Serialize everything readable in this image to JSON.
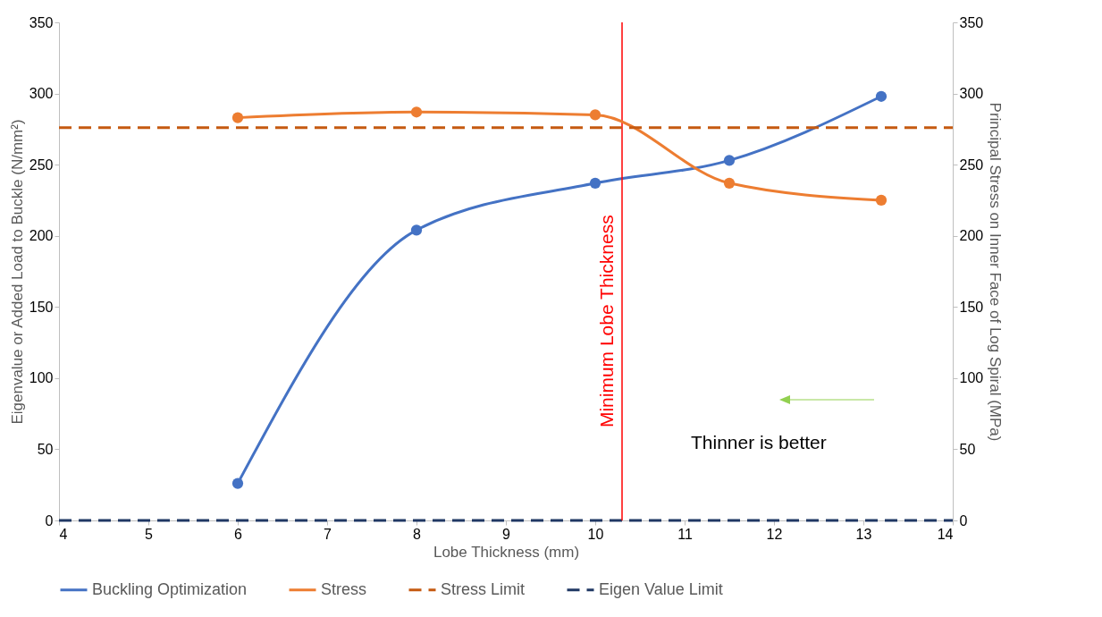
{
  "chart_data": {
    "type": "line",
    "xlabel": "Lobe Thickness (mm)",
    "ylabel": "Eigenvalue or Added Load to Buckle (N/mm²)",
    "y2label": "Principal Stress on Inner Face of Log Spiral (MPa)",
    "xlim": [
      4,
      14
    ],
    "xticks": [
      4,
      5,
      6,
      7,
      8,
      9,
      10,
      11,
      12,
      13,
      14
    ],
    "ylim": [
      0,
      350
    ],
    "yticks": [
      0,
      50,
      100,
      150,
      200,
      250,
      300,
      350
    ],
    "y2lim": [
      0,
      350
    ],
    "y2ticks": [
      0,
      50,
      100,
      150,
      200,
      250,
      300,
      350
    ],
    "grid": false,
    "legend": "bottom",
    "series": [
      {
        "name": "Buckling Optimization",
        "color": "#4472c4",
        "x": [
          6,
          8,
          10,
          11.5,
          13.2
        ],
        "values": [
          26,
          204,
          237,
          253,
          298
        ],
        "marker": "circle",
        "line_style": "solid"
      },
      {
        "name": "Stress",
        "color": "#ed7d31",
        "axis": "y2",
        "x": [
          6,
          8,
          10,
          11.5,
          13.2
        ],
        "values": [
          283,
          287,
          285,
          237,
          225
        ],
        "marker": "circle",
        "line_style": "solid"
      },
      {
        "name": "Stress Limit",
        "color": "#c55a11",
        "axis": "y2",
        "x": [
          4,
          14
        ],
        "values": [
          276,
          276
        ],
        "marker": "none",
        "line_style": "dashed"
      },
      {
        "name": "Eigen Value Limit",
        "color": "#203864",
        "x": [
          4,
          14
        ],
        "values": [
          0,
          0
        ],
        "marker": "none",
        "line_style": "dashed"
      }
    ],
    "ref_lines": [
      {
        "axis": "x",
        "value": 10.3,
        "label": "Minimum Lobe Thickness",
        "color": "#ff0000"
      }
    ],
    "annotations": [
      "Thinner is better"
    ]
  }
}
